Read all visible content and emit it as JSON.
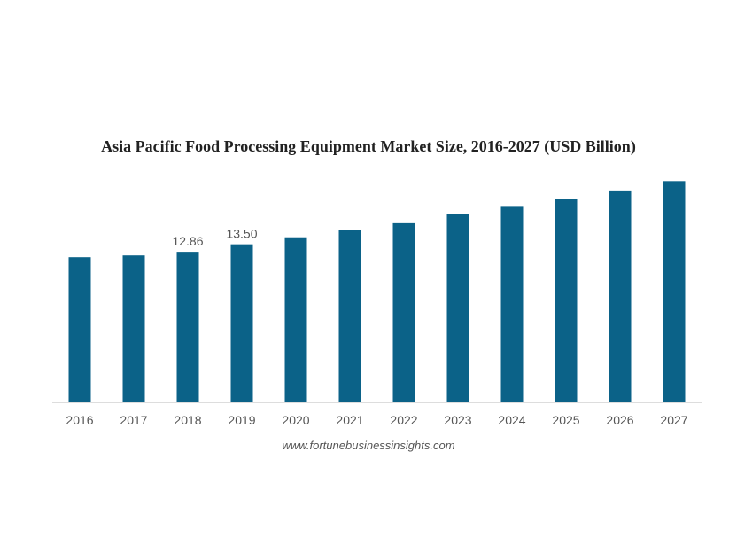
{
  "chart_data": {
    "type": "bar",
    "title": "Asia Pacific Food Processing Equipment Market Size, 2016-2027 (USD Billion)",
    "xlabel": "",
    "ylabel": "",
    "categories": [
      "2016",
      "2017",
      "2018",
      "2019",
      "2020",
      "2021",
      "2022",
      "2023",
      "2024",
      "2025",
      "2026",
      "2027"
    ],
    "values": [
      12.4,
      12.55,
      12.86,
      13.5,
      14.1,
      14.7,
      15.3,
      16.05,
      16.7,
      17.4,
      18.1,
      18.9
    ],
    "data_labels": [
      null,
      null,
      "12.86",
      "13.50",
      null,
      null,
      null,
      null,
      null,
      null,
      null,
      null
    ],
    "ylim": [
      0,
      19
    ],
    "grid": false,
    "legend": "none",
    "bar_color": "#0b6288",
    "label_color": "#555555",
    "axis_color": "#dddddd"
  },
  "source": "www.fortunebusinessinsights.com"
}
